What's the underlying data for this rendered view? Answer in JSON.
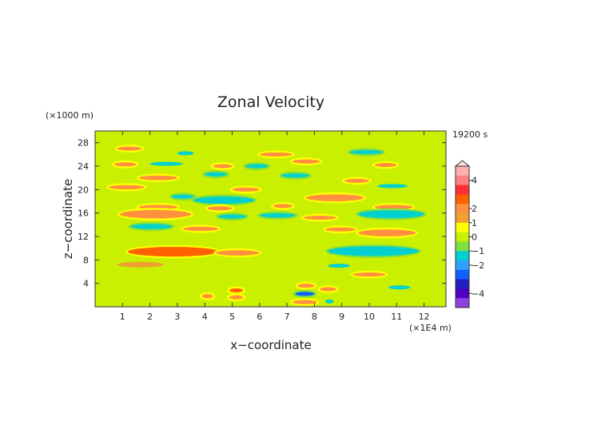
{
  "chart_data": {
    "type": "heatmap",
    "title": "Zonal Velocity",
    "time_label": "19200 s",
    "xlabel": "x−coordinate",
    "ylabel": "z−coordinate",
    "x_unit": "(×1E4 m)",
    "y_unit": "(×1000 m)",
    "xlim": [
      0,
      12.8
    ],
    "ylim": [
      0,
      30
    ],
    "xticks": [
      1,
      2,
      3,
      4,
      5,
      6,
      7,
      8,
      9,
      10,
      11,
      12
    ],
    "yticks": [
      4,
      8,
      12,
      16,
      20,
      24,
      28
    ],
    "grid": false,
    "colorbar": {
      "range": [
        -5,
        5
      ],
      "tick_labels": [
        "4",
        "2",
        "1",
        "0",
        "−1",
        "−2",
        "−4"
      ],
      "tick_values": [
        4,
        2,
        1,
        0,
        -1,
        -2,
        -4
      ],
      "colors": [
        "#ffb0b0",
        "#ff8080",
        "#ff3030",
        "#ff6000",
        "#ff9040",
        "#f0a030",
        "#ffff00",
        "#c8f000",
        "#80e040",
        "#00d0d0",
        "#30a0ff",
        "#1060ff",
        "#2020c0",
        "#5000c0",
        "#9040e0"
      ]
    },
    "bands": [
      {
        "z": 27.0,
        "x0": 0.8,
        "x1": 1.7,
        "v": 1.1
      },
      {
        "z": 26.2,
        "x0": 3.0,
        "x1": 3.6,
        "v": -0.8
      },
      {
        "z": 26.0,
        "x0": 6.0,
        "x1": 7.2,
        "v": 1.0
      },
      {
        "z": 26.4,
        "x0": 9.3,
        "x1": 10.5,
        "v": -0.9
      },
      {
        "z": 24.3,
        "x0": 0.7,
        "x1": 1.5,
        "v": 1.0
      },
      {
        "z": 24.4,
        "x0": 2.0,
        "x1": 3.2,
        "v": -0.8
      },
      {
        "z": 24.0,
        "x0": 4.3,
        "x1": 5.0,
        "v": 1.1
      },
      {
        "z": 24.0,
        "x0": 5.5,
        "x1": 6.3,
        "v": -1.0
      },
      {
        "z": 24.8,
        "x0": 7.2,
        "x1": 8.2,
        "v": 1.0
      },
      {
        "z": 24.2,
        "x0": 10.2,
        "x1": 11.0,
        "v": 1.1
      },
      {
        "z": 22.0,
        "x0": 1.6,
        "x1": 3.0,
        "v": 1.2
      },
      {
        "z": 22.6,
        "x0": 4.0,
        "x1": 4.8,
        "v": -1.0
      },
      {
        "z": 22.4,
        "x0": 6.8,
        "x1": 7.8,
        "v": -1.1
      },
      {
        "z": 21.5,
        "x0": 9.1,
        "x1": 10.0,
        "v": 1.0
      },
      {
        "z": 20.4,
        "x0": 0.5,
        "x1": 1.8,
        "v": 1.1
      },
      {
        "z": 20.0,
        "x0": 5.0,
        "x1": 6.0,
        "v": 1.0
      },
      {
        "z": 20.6,
        "x0": 10.3,
        "x1": 11.4,
        "v": -0.8
      },
      {
        "z": 18.8,
        "x0": 2.8,
        "x1": 3.6,
        "v": -1.2
      },
      {
        "z": 18.2,
        "x0": 3.6,
        "x1": 5.8,
        "v": -1.0
      },
      {
        "z": 18.6,
        "x0": 7.7,
        "x1": 9.8,
        "v": 1.4
      },
      {
        "z": 17.0,
        "x0": 1.6,
        "x1": 3.0,
        "v": 1.1
      },
      {
        "z": 16.8,
        "x0": 4.1,
        "x1": 5.0,
        "v": 1.3
      },
      {
        "z": 17.2,
        "x0": 6.5,
        "x1": 7.2,
        "v": 1.0
      },
      {
        "z": 17.0,
        "x0": 10.2,
        "x1": 11.6,
        "v": 1.2
      },
      {
        "z": 15.8,
        "x0": 0.9,
        "x1": 3.5,
        "v": 1.3
      },
      {
        "z": 15.4,
        "x0": 4.5,
        "x1": 5.5,
        "v": -1.0
      },
      {
        "z": 15.6,
        "x0": 6.0,
        "x1": 7.3,
        "v": -0.9
      },
      {
        "z": 15.2,
        "x0": 7.6,
        "x1": 8.8,
        "v": 1.1
      },
      {
        "z": 15.8,
        "x0": 9.6,
        "x1": 12.0,
        "v": -1.1
      },
      {
        "z": 13.7,
        "x0": 1.3,
        "x1": 2.8,
        "v": -0.9
      },
      {
        "z": 13.3,
        "x0": 3.2,
        "x1": 4.5,
        "v": 1.0
      },
      {
        "z": 13.2,
        "x0": 8.4,
        "x1": 9.5,
        "v": 1.0
      },
      {
        "z": 12.6,
        "x0": 9.6,
        "x1": 11.7,
        "v": 1.3
      },
      {
        "z": 9.4,
        "x0": 1.2,
        "x1": 4.5,
        "v": 1.5
      },
      {
        "z": 9.2,
        "x0": 4.4,
        "x1": 6.0,
        "v": 1.1
      },
      {
        "z": 9.5,
        "x0": 8.5,
        "x1": 11.8,
        "v": -1.1
      },
      {
        "z": 7.0,
        "x0": 8.5,
        "x1": 9.3,
        "v": -0.7
      },
      {
        "z": 7.2,
        "x0": 0.8,
        "x1": 2.5,
        "v": 0.8
      },
      {
        "z": 5.5,
        "x0": 9.4,
        "x1": 10.6,
        "v": 1.0
      },
      {
        "z": 3.3,
        "x0": 10.7,
        "x1": 11.5,
        "v": -0.8
      },
      {
        "z": 2.8,
        "x0": 4.9,
        "x1": 5.4,
        "v": 1.6
      },
      {
        "z": 1.6,
        "x0": 4.9,
        "x1": 5.4,
        "v": 1.3
      },
      {
        "z": 3.0,
        "x0": 8.2,
        "x1": 8.8,
        "v": 1.3
      },
      {
        "z": 3.6,
        "x0": 7.4,
        "x1": 8.0,
        "v": 1.0
      },
      {
        "z": 2.2,
        "x0": 7.3,
        "x1": 8.0,
        "v": -2.0
      },
      {
        "z": 0.8,
        "x0": 7.2,
        "x1": 8.1,
        "v": 1.2
      },
      {
        "z": 1.8,
        "x0": 3.9,
        "x1": 4.3,
        "v": 0.9
      },
      {
        "z": 0.9,
        "x0": 8.4,
        "x1": 8.7,
        "v": -0.8
      }
    ]
  }
}
